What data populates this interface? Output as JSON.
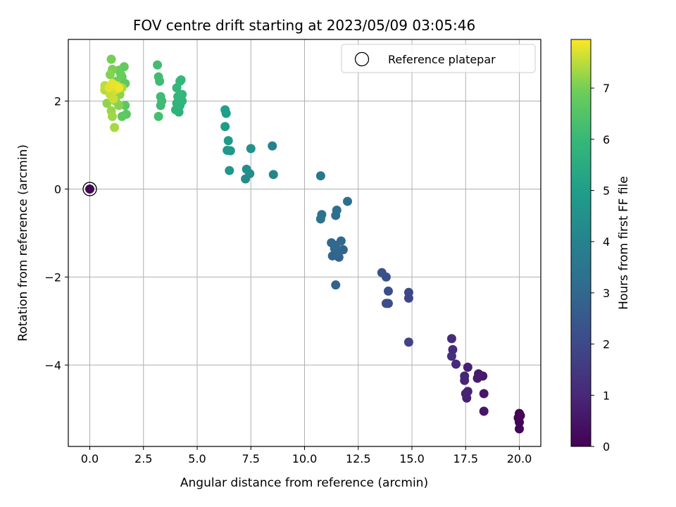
{
  "chart_data": {
    "type": "scatter",
    "title": "FOV centre drift starting at 2023/05/09 03:05:46",
    "xlabel": "Angular distance from reference (arcmin)",
    "ylabel": "Rotation from reference (arcmin)",
    "xlim": [
      -1.0,
      21.0
    ],
    "ylim": [
      -5.85,
      3.4
    ],
    "xticks": [
      0.0,
      2.5,
      5.0,
      7.5,
      10.0,
      12.5,
      15.0,
      17.5,
      20.0
    ],
    "xtick_labels": [
      "0.0",
      "2.5",
      "5.0",
      "7.5",
      "10.0",
      "12.5",
      "15.0",
      "17.5",
      "20.0"
    ],
    "yticks": [
      -4,
      -2,
      0,
      2
    ],
    "ytick_labels": [
      "−4",
      "−2",
      "0",
      "2"
    ],
    "grid": true,
    "colormap": "viridis",
    "colorbar": {
      "label": "Hours from first FF file",
      "range": [
        0,
        7.95
      ],
      "ticks": [
        0,
        1,
        2,
        3,
        4,
        5,
        6,
        7
      ],
      "tick_labels": [
        "0",
        "1",
        "2",
        "3",
        "4",
        "5",
        "6",
        "7"
      ]
    },
    "legend": {
      "position": "top-right",
      "entries": [
        "Reference platepar"
      ]
    },
    "reference_point": {
      "x": 0.0,
      "y": 0.0,
      "hours": 0.0
    },
    "points": [
      {
        "x": 20.0,
        "y": -5.1,
        "h": 0.05
      },
      {
        "x": 20.05,
        "y": -5.15,
        "h": 0.08
      },
      {
        "x": 19.95,
        "y": -5.2,
        "h": 0.1
      },
      {
        "x": 20.0,
        "y": -5.3,
        "h": 0.1
      },
      {
        "x": 20.0,
        "y": -5.45,
        "h": 0.12
      },
      {
        "x": 18.35,
        "y": -5.05,
        "h": 0.5
      },
      {
        "x": 18.35,
        "y": -4.65,
        "h": 0.55
      },
      {
        "x": 18.3,
        "y": -4.25,
        "h": 0.6
      },
      {
        "x": 18.1,
        "y": -4.2,
        "h": 0.65
      },
      {
        "x": 18.05,
        "y": -4.3,
        "h": 0.7
      },
      {
        "x": 17.6,
        "y": -4.05,
        "h": 0.8
      },
      {
        "x": 17.6,
        "y": -4.6,
        "h": 0.85
      },
      {
        "x": 17.55,
        "y": -4.75,
        "h": 0.85
      },
      {
        "x": 17.5,
        "y": -4.65,
        "h": 0.9
      },
      {
        "x": 17.45,
        "y": -4.35,
        "h": 0.95
      },
      {
        "x": 17.45,
        "y": -4.25,
        "h": 0.95
      },
      {
        "x": 17.05,
        "y": -3.98,
        "h": 1.05
      },
      {
        "x": 16.9,
        "y": -3.65,
        "h": 1.1
      },
      {
        "x": 16.85,
        "y": -3.4,
        "h": 1.15
      },
      {
        "x": 16.85,
        "y": -3.8,
        "h": 1.2
      },
      {
        "x": 14.85,
        "y": -3.48,
        "h": 1.8
      },
      {
        "x": 14.85,
        "y": -2.48,
        "h": 1.9
      },
      {
        "x": 14.85,
        "y": -2.35,
        "h": 1.95
      },
      {
        "x": 13.9,
        "y": -2.6,
        "h": 2.1
      },
      {
        "x": 13.8,
        "y": -2.6,
        "h": 2.1
      },
      {
        "x": 13.9,
        "y": -2.32,
        "h": 2.15
      },
      {
        "x": 13.8,
        "y": -2.0,
        "h": 2.2
      },
      {
        "x": 13.6,
        "y": -1.9,
        "h": 2.25
      },
      {
        "x": 11.45,
        "y": -2.18,
        "h": 2.8
      },
      {
        "x": 11.6,
        "y": -1.55,
        "h": 2.85
      },
      {
        "x": 11.3,
        "y": -1.52,
        "h": 2.9
      },
      {
        "x": 11.8,
        "y": -1.38,
        "h": 2.9
      },
      {
        "x": 11.55,
        "y": -1.45,
        "h": 2.95
      },
      {
        "x": 11.4,
        "y": -1.35,
        "h": 3.0
      },
      {
        "x": 11.25,
        "y": -1.22,
        "h": 3.0
      },
      {
        "x": 11.7,
        "y": -1.18,
        "h": 3.05
      },
      {
        "x": 11.45,
        "y": -1.28,
        "h": 3.05
      },
      {
        "x": 11.45,
        "y": -0.6,
        "h": 3.2
      },
      {
        "x": 11.5,
        "y": -0.48,
        "h": 3.25
      },
      {
        "x": 12.0,
        "y": -0.28,
        "h": 3.3
      },
      {
        "x": 10.8,
        "y": -0.58,
        "h": 3.35
      },
      {
        "x": 10.75,
        "y": -0.68,
        "h": 3.35
      },
      {
        "x": 10.75,
        "y": 0.3,
        "h": 3.5
      },
      {
        "x": 8.5,
        "y": 0.98,
        "h": 4.0
      },
      {
        "x": 8.55,
        "y": 0.33,
        "h": 4.05
      },
      {
        "x": 7.25,
        "y": 0.23,
        "h": 4.3
      },
      {
        "x": 7.45,
        "y": 0.35,
        "h": 4.35
      },
      {
        "x": 7.3,
        "y": 0.45,
        "h": 4.4
      },
      {
        "x": 7.5,
        "y": 0.92,
        "h": 4.5
      },
      {
        "x": 6.5,
        "y": 0.42,
        "h": 4.7
      },
      {
        "x": 6.55,
        "y": 0.87,
        "h": 4.75
      },
      {
        "x": 6.4,
        "y": 0.88,
        "h": 4.8
      },
      {
        "x": 6.45,
        "y": 1.1,
        "h": 4.85
      },
      {
        "x": 6.3,
        "y": 1.42,
        "h": 4.95
      },
      {
        "x": 6.35,
        "y": 1.72,
        "h": 5.0
      },
      {
        "x": 6.3,
        "y": 1.8,
        "h": 5.05
      },
      {
        "x": 4.15,
        "y": 1.75,
        "h": 5.7
      },
      {
        "x": 4.0,
        "y": 1.8,
        "h": 5.75
      },
      {
        "x": 4.2,
        "y": 1.9,
        "h": 5.8
      },
      {
        "x": 4.05,
        "y": 1.95,
        "h": 5.8
      },
      {
        "x": 4.3,
        "y": 2.0,
        "h": 5.85
      },
      {
        "x": 4.1,
        "y": 2.1,
        "h": 5.85
      },
      {
        "x": 4.3,
        "y": 2.15,
        "h": 5.9
      },
      {
        "x": 4.05,
        "y": 2.3,
        "h": 5.9
      },
      {
        "x": 4.2,
        "y": 2.45,
        "h": 5.95
      },
      {
        "x": 4.25,
        "y": 2.48,
        "h": 5.95
      },
      {
        "x": 3.3,
        "y": 1.9,
        "h": 6.1
      },
      {
        "x": 3.35,
        "y": 2.0,
        "h": 6.1
      },
      {
        "x": 3.3,
        "y": 2.1,
        "h": 6.15
      },
      {
        "x": 3.25,
        "y": 2.45,
        "h": 6.15
      },
      {
        "x": 3.2,
        "y": 2.55,
        "h": 6.2
      },
      {
        "x": 3.15,
        "y": 2.82,
        "h": 6.2
      },
      {
        "x": 3.2,
        "y": 1.65,
        "h": 6.25
      },
      {
        "x": 1.7,
        "y": 1.7,
        "h": 6.6
      },
      {
        "x": 1.65,
        "y": 1.9,
        "h": 6.65
      },
      {
        "x": 1.5,
        "y": 1.65,
        "h": 6.7
      },
      {
        "x": 1.65,
        "y": 2.4,
        "h": 6.7
      },
      {
        "x": 1.5,
        "y": 2.55,
        "h": 6.75
      },
      {
        "x": 1.6,
        "y": 2.78,
        "h": 6.8
      },
      {
        "x": 1.35,
        "y": 2.7,
        "h": 6.85
      },
      {
        "x": 1.45,
        "y": 2.6,
        "h": 6.85
      },
      {
        "x": 1.25,
        "y": 2.45,
        "h": 6.9
      },
      {
        "x": 1.0,
        "y": 2.95,
        "h": 7.0
      },
      {
        "x": 1.05,
        "y": 2.72,
        "h": 7.05
      },
      {
        "x": 0.95,
        "y": 2.6,
        "h": 7.1
      },
      {
        "x": 1.35,
        "y": 1.9,
        "h": 7.1
      },
      {
        "x": 1.2,
        "y": 2.0,
        "h": 7.15
      },
      {
        "x": 1.4,
        "y": 2.15,
        "h": 7.15
      },
      {
        "x": 0.8,
        "y": 1.95,
        "h": 7.2
      },
      {
        "x": 1.0,
        "y": 1.78,
        "h": 7.25
      },
      {
        "x": 1.05,
        "y": 1.65,
        "h": 7.3
      },
      {
        "x": 1.15,
        "y": 1.4,
        "h": 7.35
      },
      {
        "x": 1.5,
        "y": 2.3,
        "h": 7.4
      },
      {
        "x": 0.7,
        "y": 2.25,
        "h": 7.45
      },
      {
        "x": 0.7,
        "y": 2.35,
        "h": 7.5
      },
      {
        "x": 0.95,
        "y": 2.15,
        "h": 7.55
      },
      {
        "x": 1.1,
        "y": 2.05,
        "h": 7.6
      },
      {
        "x": 1.2,
        "y": 2.25,
        "h": 7.65
      },
      {
        "x": 1.25,
        "y": 2.35,
        "h": 7.7
      },
      {
        "x": 0.9,
        "y": 2.3,
        "h": 7.75
      },
      {
        "x": 1.05,
        "y": 2.4,
        "h": 7.8
      },
      {
        "x": 1.35,
        "y": 2.3,
        "h": 7.85
      }
    ]
  }
}
